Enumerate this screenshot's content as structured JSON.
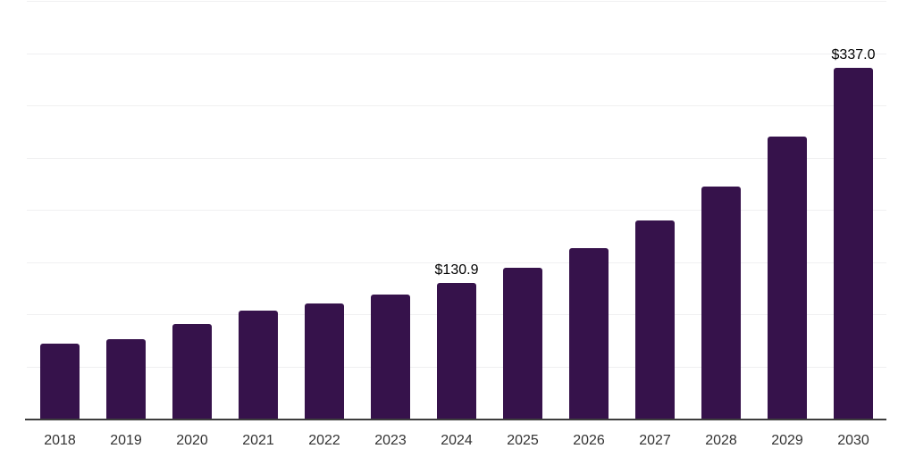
{
  "chart_data": {
    "type": "bar",
    "title": "",
    "xlabel": "",
    "ylabel": "",
    "categories": [
      "2018",
      "2019",
      "2020",
      "2021",
      "2022",
      "2023",
      "2024",
      "2025",
      "2026",
      "2027",
      "2028",
      "2029",
      "2030"
    ],
    "values": [
      72.6,
      76.9,
      91.2,
      104.0,
      111.1,
      119.9,
      130.9,
      145.3,
      164.1,
      190.6,
      223.1,
      271.0,
      337.0
    ],
    "data_labels": {
      "2024": "$130.9",
      "2030": "$337.0"
    },
    "ylim": [
      0,
      400
    ],
    "gridline_interval": 50,
    "grid": true,
    "legend": "none",
    "y_axis_tick_labels_visible": false,
    "bar_color": "#36124B",
    "gridline_color": "#F0F0F1",
    "axis_line_color": "#3D3D3D",
    "tick_label_color": "#333333",
    "data_label_color": "#000000",
    "background_color": "#FFFFFF"
  }
}
